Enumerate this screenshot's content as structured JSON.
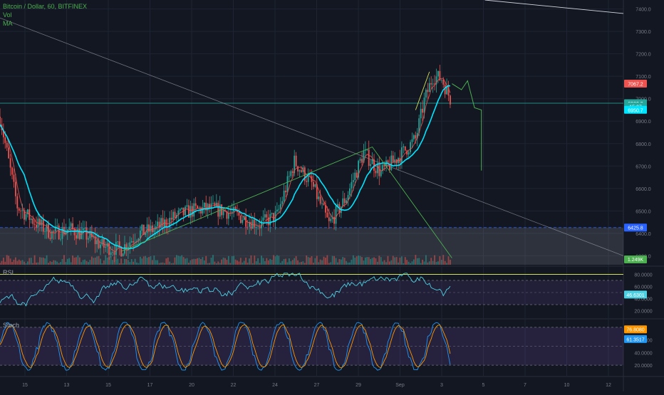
{
  "legend": {
    "symbol": "Bitcoin / Dollar, 60, BITFINEX",
    "vol": "Vol",
    "ma": "MA"
  },
  "panes": {
    "rsi_title": "RSI",
    "stoch_title": "Stoch"
  },
  "colors": {
    "background": "#131722",
    "up": "#26a69a",
    "down": "#ef5350",
    "ma_fast": "#ef5350",
    "ma_slow": "#00e5ff",
    "rsi_line": "#4dd0e1",
    "stoch_k": "#2196f3",
    "stoch_d": "#ff9800",
    "trend_green": "#4caf50",
    "trend_yellow": "#d4e157"
  },
  "chart_data": [
    {
      "type": "candlestick",
      "pane": "price",
      "symbol": "BTCUSD",
      "timeframe": "60",
      "exchange": "BITFINEX",
      "ylim": [
        6260,
        7440
      ],
      "y_ticks": [
        7400,
        7300,
        7200,
        7100,
        7000,
        6900,
        6800,
        6700,
        6600,
        6500,
        6400,
        6300
      ],
      "x_ticks": [
        "15",
        "13",
        "15",
        "17",
        "20",
        "22",
        "24",
        "27",
        "29",
        "Sep",
        "3",
        "5",
        "7",
        "10",
        "12"
      ],
      "trend_points": [
        {
          "t": 0,
          "close": 6920
        },
        {
          "t": 20,
          "close": 6520
        },
        {
          "t": 40,
          "close": 6450
        },
        {
          "t": 60,
          "close": 6400
        },
        {
          "t": 80,
          "close": 6420
        },
        {
          "t": 100,
          "close": 6390
        },
        {
          "t": 120,
          "close": 6340
        },
        {
          "t": 140,
          "close": 6330
        },
        {
          "t": 160,
          "close": 6400
        },
        {
          "t": 180,
          "close": 6420
        },
        {
          "t": 200,
          "close": 6470
        },
        {
          "t": 220,
          "close": 6500
        },
        {
          "t": 240,
          "close": 6510
        },
        {
          "t": 260,
          "close": 6500
        },
        {
          "t": 280,
          "close": 6470
        },
        {
          "t": 300,
          "close": 6440
        },
        {
          "t": 320,
          "close": 6480
        },
        {
          "t": 340,
          "close": 6720
        },
        {
          "t": 360,
          "close": 6620
        },
        {
          "t": 380,
          "close": 6440
        },
        {
          "t": 400,
          "close": 6560
        },
        {
          "t": 420,
          "close": 6760
        },
        {
          "t": 440,
          "close": 6670
        },
        {
          "t": 460,
          "close": 6740
        },
        {
          "t": 480,
          "close": 6820
        },
        {
          "t": 490,
          "close": 6990
        },
        {
          "t": 500,
          "close": 7100
        },
        {
          "t": 510,
          "close": 7090
        },
        {
          "t": 520,
          "close": 7000
        }
      ],
      "forecast_path": [
        {
          "t": 522,
          "close": 7067
        },
        {
          "t": 533,
          "close": 7040
        },
        {
          "t": 540,
          "close": 7080
        },
        {
          "t": 548,
          "close": 6960
        },
        {
          "t": 556,
          "close": 6950
        },
        {
          "t": 556,
          "close": 6680
        }
      ],
      "price_labels": [
        {
          "value": 7067.2,
          "label": "7067.2",
          "color": "#ef5350"
        },
        {
          "value": 6980.0,
          "label": "6980.0",
          "color": "#26a69a"
        },
        {
          "value": 6965.0,
          "label": "15:27",
          "color": "#26a69a"
        },
        {
          "value": 6950.7,
          "label": "6950.7",
          "color": "#00e5ff"
        },
        {
          "value": 6425.8,
          "label": "6425.8",
          "color": "#2962ff"
        }
      ],
      "horizontal_levels": [
        {
          "value": 6980.0,
          "style": "solid",
          "color": "#26a69a"
        },
        {
          "value": 6425.8,
          "style": "dashed",
          "color": "#2962ff"
        }
      ],
      "volume_label": "1.249K"
    },
    {
      "type": "line",
      "pane": "rsi",
      "title": "RSI",
      "ylim": [
        10,
        90
      ],
      "y_ticks": [
        80,
        60,
        40,
        20
      ],
      "y_tick_labels": [
        "80.0000",
        "60.0000",
        "40.0000",
        "20.0000"
      ],
      "bands": [
        70,
        30
      ],
      "last_value": "46.6301"
    },
    {
      "type": "line",
      "pane": "stoch",
      "title": "Stoch",
      "ylim": [
        10,
        90
      ],
      "y_ticks": [
        60,
        40,
        20
      ],
      "y_tick_labels": [
        "60.0000",
        "40.0000",
        "20.0000"
      ],
      "bands": [
        80,
        20
      ],
      "k_last": "76.8080",
      "d_last": "61.3517"
    }
  ]
}
